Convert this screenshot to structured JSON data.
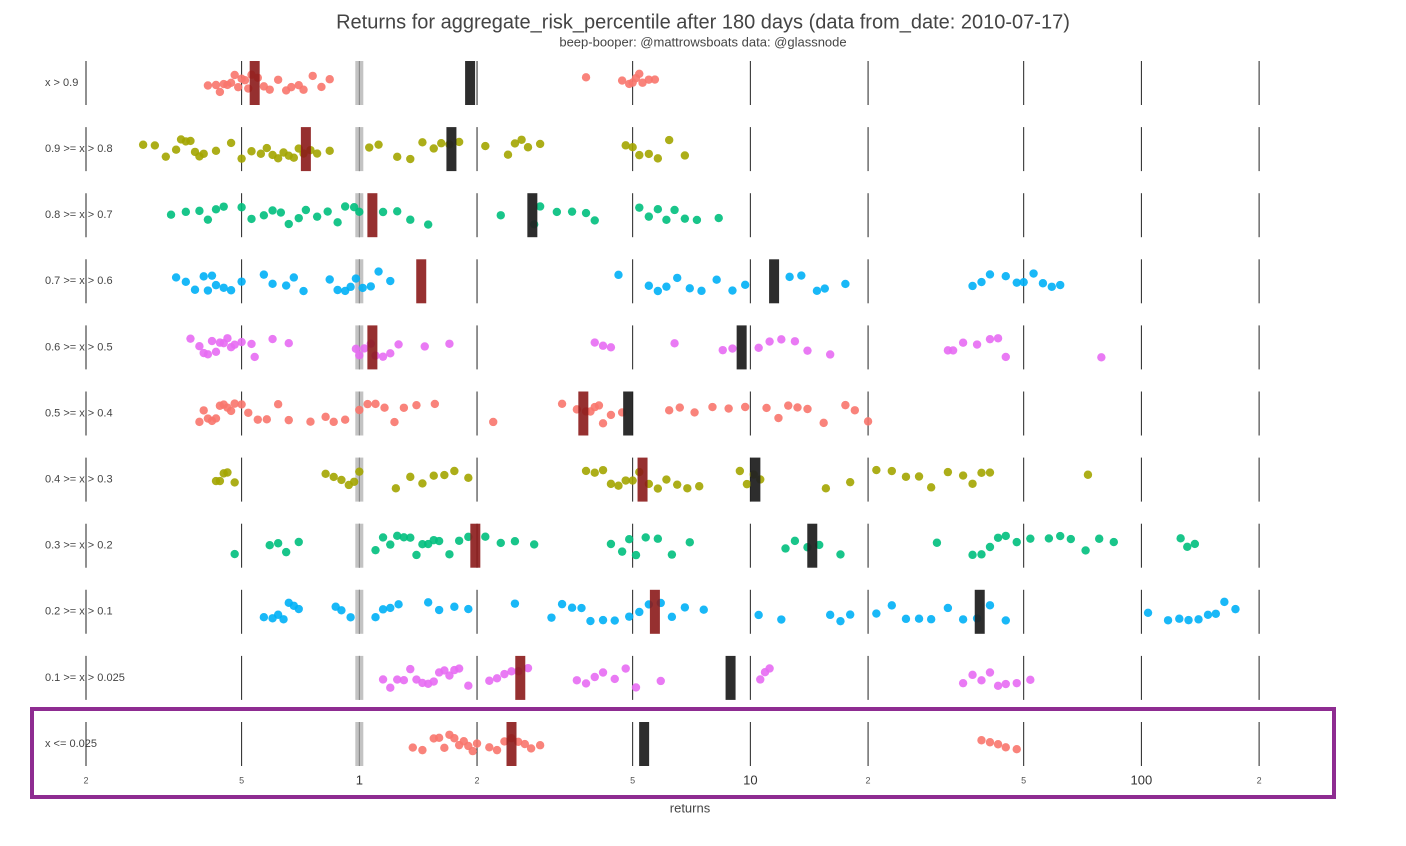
{
  "chart_data": {
    "type": "strip",
    "title": "Returns for aggregate_risk_percentile after 180 days (data from_date: 2010-07-17)",
    "subtitle": "beep-booper: @mattrowsboats data: @glassnode",
    "xlabel": "returns",
    "log_x": true,
    "grid": true,
    "xlim": [
      0.2,
      250
    ],
    "xticks": [
      {
        "value": 0.2,
        "label": "2"
      },
      {
        "value": 0.5,
        "label": "5"
      },
      1,
      {
        "value": 2,
        "label": "2"
      },
      {
        "value": 5,
        "label": "5"
      },
      10,
      {
        "value": 20,
        "label": "2"
      },
      {
        "value": 50,
        "label": "5"
      },
      100,
      {
        "value": 200,
        "label": "2"
      }
    ],
    "reference": 1,
    "reference_color": "#aaaaaa",
    "median_color": "#8b1a1a",
    "mean_color": "#222222",
    "categories": [
      "x > 0.9",
      "0.9 >= x > 0.8",
      "0.8 >= x > 0.7",
      "0.7 >= x > 0.6",
      "0.6 >= x > 0.5",
      "0.5 >= x > 0.4",
      "0.4 >= x > 0.3",
      "0.3 >= x > 0.2",
      "0.2 >= x > 0.1",
      "0.1 >= x > 0.025",
      "x <= 0.025"
    ],
    "series": [
      {
        "color": "#f8766d",
        "median": 0.54,
        "mean": 1.92,
        "values": [
          0.41,
          0.43,
          0.44,
          0.45,
          0.46,
          0.47,
          0.48,
          0.49,
          0.5,
          0.51,
          0.52,
          0.53,
          0.55,
          0.57,
          0.59,
          0.62,
          0.65,
          0.67,
          0.7,
          0.72,
          0.76,
          0.8,
          0.84,
          3.8,
          4.7,
          4.9,
          5.0,
          5.1,
          5.2,
          5.3,
          5.5,
          5.7
        ]
      },
      {
        "color": "#a3a500",
        "median": 0.73,
        "mean": 1.72,
        "values": [
          0.28,
          0.3,
          0.32,
          0.34,
          0.35,
          0.36,
          0.37,
          0.38,
          0.39,
          0.4,
          0.43,
          0.47,
          0.5,
          0.53,
          0.56,
          0.58,
          0.6,
          0.62,
          0.64,
          0.66,
          0.68,
          0.7,
          0.72,
          0.75,
          0.78,
          0.84,
          1.06,
          1.12,
          1.25,
          1.35,
          1.45,
          1.55,
          1.62,
          1.7,
          1.8,
          2.1,
          2.4,
          2.5,
          2.6,
          2.7,
          2.9,
          4.8,
          5.0,
          5.2,
          5.5,
          5.8,
          6.2,
          6.8
        ]
      },
      {
        "color": "#00bf7d",
        "median": 1.08,
        "mean": 2.77,
        "values": [
          0.33,
          0.36,
          0.39,
          0.41,
          0.43,
          0.45,
          0.5,
          0.53,
          0.57,
          0.6,
          0.63,
          0.66,
          0.7,
          0.73,
          0.78,
          0.83,
          0.88,
          0.92,
          0.97,
          1.0,
          1.15,
          1.25,
          1.35,
          1.5,
          2.3,
          2.8,
          2.9,
          3.2,
          3.5,
          3.8,
          4.0,
          5.2,
          5.5,
          5.8,
          6.1,
          6.4,
          6.8,
          7.3,
          8.3
        ]
      },
      {
        "color": "#00b0f6",
        "median": 1.44,
        "mean": 11.5,
        "values": [
          0.34,
          0.36,
          0.38,
          0.4,
          0.41,
          0.42,
          0.43,
          0.45,
          0.47,
          0.5,
          0.57,
          0.6,
          0.65,
          0.68,
          0.72,
          0.84,
          0.88,
          0.92,
          0.95,
          0.98,
          1.02,
          1.07,
          1.12,
          1.2,
          4.6,
          5.5,
          5.8,
          6.1,
          6.5,
          7.0,
          7.5,
          8.2,
          9.0,
          9.7,
          12.6,
          13.5,
          14.8,
          15.5,
          17.5,
          37,
          39,
          41,
          45,
          48,
          50,
          53,
          56,
          59,
          62
        ]
      },
      {
        "color": "#e76bf3",
        "median": 1.08,
        "mean": 9.5,
        "values": [
          0.37,
          0.39,
          0.4,
          0.41,
          0.42,
          0.43,
          0.44,
          0.45,
          0.46,
          0.47,
          0.48,
          0.5,
          0.53,
          0.54,
          0.6,
          0.66,
          0.98,
          1.0,
          1.03,
          1.07,
          1.1,
          1.15,
          1.2,
          1.26,
          1.47,
          1.7,
          4.0,
          4.2,
          4.4,
          6.4,
          8.5,
          9.0,
          10.5,
          11.2,
          12.0,
          13.0,
          14.0,
          16.0,
          32,
          33,
          35,
          38,
          41,
          43,
          45,
          79
        ]
      },
      {
        "color": "#f8766d",
        "median": 3.74,
        "mean": 4.87,
        "values": [
          0.39,
          0.4,
          0.41,
          0.42,
          0.43,
          0.44,
          0.45,
          0.46,
          0.47,
          0.48,
          0.5,
          0.52,
          0.55,
          0.58,
          0.62,
          0.66,
          0.75,
          0.82,
          0.86,
          0.92,
          1.0,
          1.05,
          1.1,
          1.16,
          1.23,
          1.3,
          1.4,
          1.56,
          2.2,
          3.3,
          3.6,
          3.8,
          3.9,
          4.0,
          4.1,
          4.2,
          4.4,
          4.7,
          6.2,
          6.6,
          7.2,
          8.0,
          8.8,
          9.7,
          11,
          11.8,
          12.5,
          13.2,
          14.0,
          15.4,
          17.5,
          18.5,
          20
        ]
      },
      {
        "color": "#a3a500",
        "median": 5.3,
        "mean": 10.3,
        "values": [
          0.43,
          0.44,
          0.45,
          0.46,
          0.48,
          0.82,
          0.86,
          0.9,
          0.94,
          0.97,
          1.0,
          1.24,
          1.35,
          1.45,
          1.55,
          1.65,
          1.75,
          1.9,
          3.8,
          4.0,
          4.2,
          4.4,
          4.6,
          4.8,
          5.0,
          5.2,
          5.5,
          5.8,
          6.1,
          6.5,
          6.9,
          7.4,
          9.4,
          9.8,
          10.2,
          10.6,
          15.6,
          18,
          21,
          23,
          25,
          27,
          29,
          32,
          35,
          37,
          39,
          41,
          73
        ]
      },
      {
        "color": "#00bf7d",
        "median": 1.98,
        "mean": 14.4,
        "values": [
          0.48,
          0.59,
          0.62,
          0.65,
          0.7,
          1.1,
          1.15,
          1.2,
          1.25,
          1.3,
          1.35,
          1.4,
          1.45,
          1.5,
          1.55,
          1.6,
          1.7,
          1.8,
          1.9,
          2.1,
          2.3,
          2.5,
          2.8,
          4.4,
          4.7,
          4.9,
          5.1,
          5.4,
          5.8,
          6.3,
          7.0,
          12.3,
          13,
          14,
          15,
          17,
          30,
          37,
          39,
          41,
          43,
          45,
          48,
          52,
          58,
          62,
          66,
          72,
          78,
          85,
          126,
          131,
          137
        ]
      },
      {
        "color": "#00b0f6",
        "median": 5.7,
        "mean": 38.6,
        "values": [
          0.57,
          0.6,
          0.62,
          0.64,
          0.66,
          0.68,
          0.7,
          0.87,
          0.9,
          0.95,
          1.1,
          1.15,
          1.2,
          1.26,
          1.5,
          1.6,
          1.75,
          1.9,
          2.5,
          3.1,
          3.3,
          3.5,
          3.7,
          3.9,
          4.2,
          4.5,
          4.9,
          5.2,
          5.5,
          5.9,
          6.3,
          6.8,
          7.6,
          10.5,
          12,
          16,
          17,
          18,
          21,
          23,
          25,
          27,
          29,
          32,
          35,
          38,
          41,
          45,
          104,
          117,
          125,
          132,
          140,
          148,
          155,
          163,
          174
        ]
      },
      {
        "color": "#e76bf3",
        "median": 2.58,
        "mean": 8.9,
        "values": [
          1.15,
          1.2,
          1.25,
          1.3,
          1.35,
          1.4,
          1.45,
          1.5,
          1.55,
          1.6,
          1.65,
          1.7,
          1.75,
          1.8,
          1.9,
          2.15,
          2.25,
          2.35,
          2.45,
          2.55,
          2.7,
          3.6,
          3.8,
          4.0,
          4.2,
          4.5,
          4.8,
          5.1,
          5.9,
          10.6,
          10.9,
          11.2,
          35,
          37,
          39,
          41,
          43,
          45,
          48,
          52
        ]
      },
      {
        "color": "#f8766d",
        "median": 2.45,
        "mean": 5.35,
        "values": [
          1.37,
          1.45,
          1.55,
          1.6,
          1.65,
          1.7,
          1.75,
          1.8,
          1.85,
          1.9,
          1.95,
          2.0,
          2.15,
          2.25,
          2.35,
          2.45,
          2.55,
          2.65,
          2.75,
          2.9,
          39,
          41,
          43,
          45,
          48
        ]
      }
    ]
  }
}
